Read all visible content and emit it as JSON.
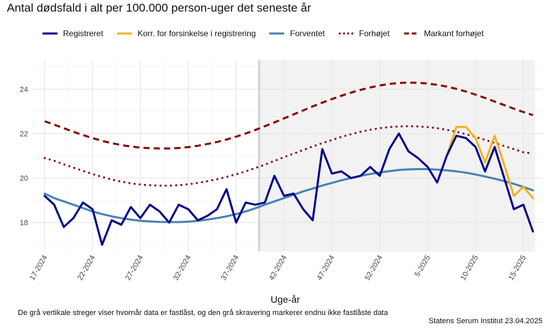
{
  "chart_data": {
    "type": "line",
    "title": "Antal dødsfald i alt per 100.000 person-uger det seneste år",
    "xlabel": "Uge-år",
    "ylabel": "",
    "ylim": [
      16.7,
      25.3
    ],
    "yticks": [
      18,
      20,
      22,
      24
    ],
    "x_tick_labels": [
      "17-2024",
      "22-2024",
      "27-2024",
      "32-2024",
      "37-2024",
      "42-2024",
      "47-2024",
      "52-2024",
      "5-2025",
      "10-2025",
      "15-2025"
    ],
    "x_tick_weeks": [
      0,
      5,
      10,
      15,
      20,
      25,
      30,
      35,
      40,
      45,
      50
    ],
    "n_weeks": 52,
    "lock_week": 22.4,
    "series": [
      {
        "name": "Registreret",
        "color": "#00008B",
        "style": "solid",
        "start": 0,
        "values": [
          19.2,
          18.8,
          17.8,
          18.2,
          18.9,
          18.6,
          17.0,
          18.1,
          17.9,
          18.7,
          18.2,
          18.8,
          18.5,
          18.0,
          18.8,
          18.6,
          18.1,
          18.3,
          18.6,
          19.5,
          18.0,
          18.9,
          18.8,
          18.9,
          20.1,
          19.2,
          19.3,
          18.6,
          18.1,
          21.3,
          20.2,
          20.3,
          20.0,
          20.1,
          20.5,
          20.1,
          21.3,
          22.0,
          21.2,
          20.9,
          20.5,
          19.8,
          21.0,
          21.9,
          21.8,
          21.4,
          20.3,
          21.4,
          20.0,
          18.6,
          18.8,
          17.6
        ]
      },
      {
        "name": "Korr. for forsinkelse i registrering",
        "color": "#F0B323",
        "style": "solid",
        "start": 42,
        "values": [
          21.0,
          22.3,
          22.3,
          21.8,
          20.7,
          21.9,
          20.6,
          19.2,
          19.6,
          19.1
        ]
      },
      {
        "name": "Forventet",
        "color": "#4682B4",
        "style": "solid",
        "start": 0,
        "values": [
          19.3,
          19.1,
          18.95,
          18.8,
          18.65,
          18.5,
          18.38,
          18.28,
          18.2,
          18.13,
          18.08,
          18.05,
          18.03,
          18.02,
          18.02,
          18.04,
          18.08,
          18.13,
          18.2,
          18.28,
          18.38,
          18.5,
          18.64,
          18.8,
          18.95,
          19.1,
          19.25,
          19.4,
          19.53,
          19.66,
          19.78,
          19.9,
          20.0,
          20.1,
          20.18,
          20.25,
          20.31,
          20.36,
          20.39,
          20.4,
          20.4,
          20.38,
          20.35,
          20.3,
          20.24,
          20.16,
          20.07,
          19.97,
          19.86,
          19.74,
          19.6,
          19.45
        ]
      },
      {
        "name": "Forhøjet",
        "color": "#8B0000",
        "style": "dotted",
        "start": 0,
        "values": [
          20.9,
          20.78,
          20.62,
          20.47,
          20.32,
          20.18,
          20.05,
          19.93,
          19.84,
          19.76,
          19.71,
          19.68,
          19.66,
          19.66,
          19.68,
          19.72,
          19.78,
          19.86,
          19.95,
          20.05,
          20.17,
          20.3,
          20.45,
          20.6,
          20.77,
          20.94,
          21.1,
          21.26,
          21.42,
          21.57,
          21.71,
          21.85,
          21.97,
          22.08,
          22.17,
          22.24,
          22.29,
          22.32,
          22.33,
          22.32,
          22.29,
          22.24,
          22.17,
          22.08,
          21.97,
          21.85,
          21.72,
          21.58,
          21.44,
          21.3,
          21.16,
          21.1
        ]
      },
      {
        "name": "Markant forhøjet",
        "color": "#8B0000",
        "style": "dashed",
        "start": 0,
        "values": [
          22.55,
          22.4,
          22.24,
          22.08,
          21.93,
          21.8,
          21.67,
          21.57,
          21.48,
          21.42,
          21.37,
          21.34,
          21.33,
          21.33,
          21.35,
          21.39,
          21.45,
          21.53,
          21.62,
          21.73,
          21.86,
          22.0,
          22.16,
          22.33,
          22.5,
          22.68,
          22.86,
          23.04,
          23.22,
          23.39,
          23.55,
          23.7,
          23.84,
          23.96,
          24.07,
          24.16,
          24.23,
          24.27,
          24.29,
          24.28,
          24.25,
          24.19,
          24.11,
          24.01,
          23.89,
          23.75,
          23.6,
          23.44,
          23.28,
          23.12,
          22.97,
          22.83
        ]
      }
    ]
  },
  "legend": [
    {
      "label": "Registreret",
      "color": "#00008B",
      "style": "solid"
    },
    {
      "label": "Korr. for forsinkelse i registrering",
      "color": "#F0B323",
      "style": "solid"
    },
    {
      "label": "Forventet",
      "color": "#4682B4",
      "style": "solid"
    },
    {
      "label": "Forhøjet",
      "color": "#8B0000",
      "style": "dotted"
    },
    {
      "label": "Markant forhøjet",
      "color": "#8B0000",
      "style": "dashed"
    }
  ],
  "caption": "De grå vertikale streger viser hvornår data er fastlåst, og den grå skravering markerer endnu ikke fastlåste data",
  "source": "Statens Serum Institut  23.04.2025"
}
